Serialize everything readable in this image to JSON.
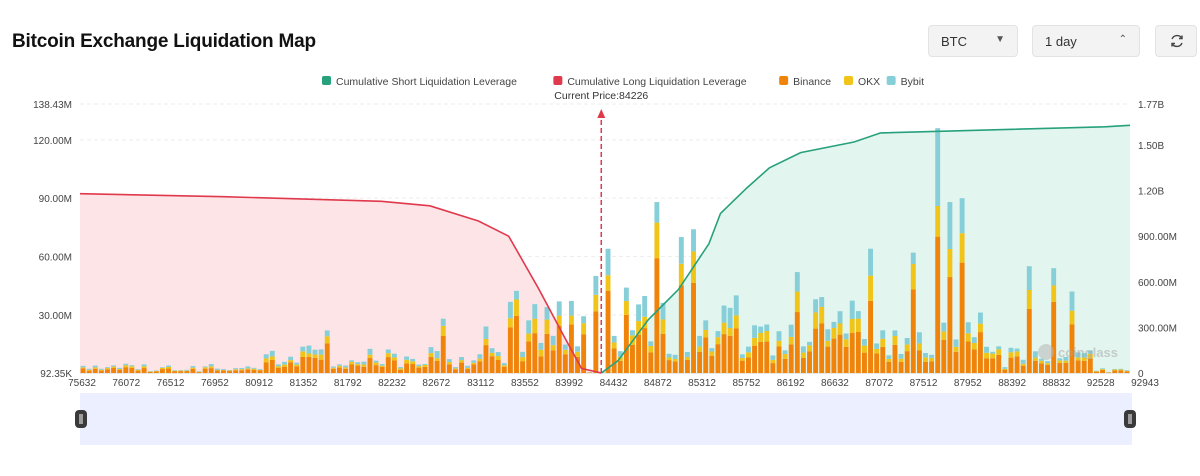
{
  "header": {
    "title": "Bitcoin Exchange Liquidation Map",
    "coin_select": "BTC",
    "range_select": "1 day"
  },
  "colors": {
    "short": "#26a17b",
    "short_fill": "#e3f5ef",
    "long": "#e0394c",
    "long_fill": "#fde4e7",
    "binance": "#f0830a",
    "okx": "#f0c419",
    "bybit": "#86cfd8",
    "price_line": "#e0394c"
  },
  "watermark": "coinglass",
  "chart_data": {
    "type": "bar",
    "title": "Bitcoin Exchange Liquidation Map",
    "current_price_label": "Current Price:84226",
    "current_price": 84226,
    "legend": [
      {
        "name": "Cumulative Short Liquidation Leverage",
        "color": "#26a17b"
      },
      {
        "name": "Cumulative Long Liquidation Leverage",
        "color": "#e0394c"
      },
      {
        "name": "Binance",
        "color": "#f0830a"
      },
      {
        "name": "OKX",
        "color": "#f0c419"
      },
      {
        "name": "Bybit",
        "color": "#86cfd8"
      }
    ],
    "x_ticks": [
      "75632",
      "76072",
      "76512",
      "76952",
      "80912",
      "81352",
      "81792",
      "82232",
      "82672",
      "83112",
      "83552",
      "83992",
      "84432",
      "84872",
      "85312",
      "85752",
      "86192",
      "86632",
      "87072",
      "87512",
      "87952",
      "88392",
      "88832",
      "92528",
      "92943"
    ],
    "x_range": [
      75632,
      92943
    ],
    "y_left": {
      "ticks": [
        "92.35K",
        "30.00M",
        "60.00M",
        "90.00M",
        "120.00M",
        "138.43M"
      ],
      "values": [
        0.09235,
        30,
        60,
        90,
        120,
        138.43
      ],
      "range": [
        0.09235,
        138.43
      ],
      "unit": "M"
    },
    "y_right": {
      "ticks": [
        "0",
        "300.00M",
        "600.00M",
        "900.00M",
        "1.20B",
        "1.50B",
        "1.77B"
      ],
      "values": [
        0,
        0.3,
        0.6,
        0.9,
        1.2,
        1.5,
        1.77
      ],
      "range": [
        0,
        1.77
      ],
      "unit": "B"
    },
    "bar_count": 172,
    "bar_peaks": [
      {
        "index": 40,
        "value": 22
      },
      {
        "index": 59,
        "value": 28
      },
      {
        "index": 66,
        "value": 24
      },
      {
        "index": 76,
        "value": 34
      },
      {
        "index": 84,
        "value": 50
      },
      {
        "index": 86,
        "value": 64
      },
      {
        "index": 89,
        "value": 44
      },
      {
        "index": 94,
        "value": 88
      },
      {
        "index": 98,
        "value": 70
      },
      {
        "index": 100,
        "value": 74
      },
      {
        "index": 107,
        "value": 40
      },
      {
        "index": 117,
        "value": 52
      },
      {
        "index": 120,
        "value": 38
      },
      {
        "index": 129,
        "value": 64
      },
      {
        "index": 136,
        "value": 62
      },
      {
        "index": 140,
        "value": 126
      },
      {
        "index": 142,
        "value": 88
      },
      {
        "index": 144,
        "value": 90
      },
      {
        "index": 155,
        "value": 55
      },
      {
        "index": 159,
        "value": 54
      },
      {
        "index": 162,
        "value": 42
      }
    ],
    "long_cumulative_B": [
      [
        75632,
        1.18
      ],
      [
        78000,
        1.16
      ],
      [
        80600,
        1.13
      ],
      [
        81400,
        1.1
      ],
      [
        82200,
        1.0
      ],
      [
        82700,
        0.9
      ],
      [
        83200,
        0.55
      ],
      [
        83600,
        0.25
      ],
      [
        83900,
        0.03
      ],
      [
        84226,
        0.0
      ]
    ],
    "short_cumulative_B": [
      [
        84226,
        0.0
      ],
      [
        84500,
        0.08
      ],
      [
        85000,
        0.35
      ],
      [
        85500,
        0.55
      ],
      [
        86000,
        0.85
      ],
      [
        86192,
        1.05
      ],
      [
        86632,
        1.22
      ],
      [
        87000,
        1.35
      ],
      [
        87512,
        1.45
      ],
      [
        88392,
        1.52
      ],
      [
        88832,
        1.58
      ],
      [
        92528,
        1.62
      ],
      [
        92943,
        1.63
      ]
    ]
  }
}
